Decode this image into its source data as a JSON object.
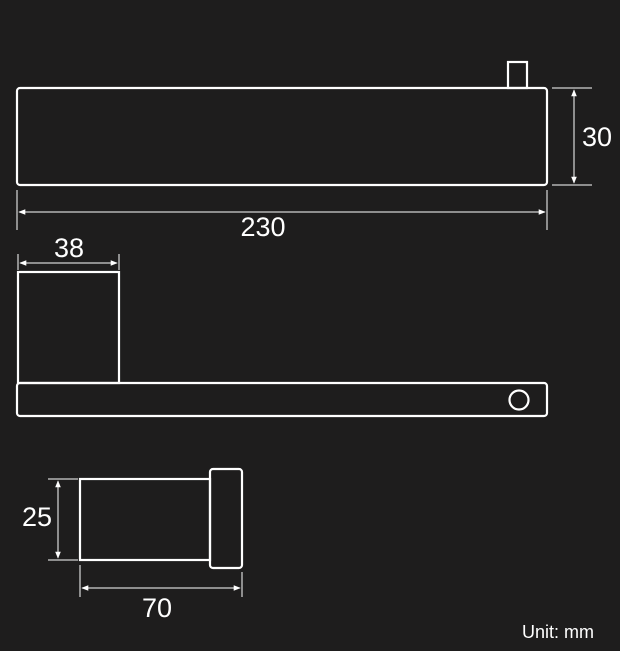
{
  "dimensions": {
    "length": "230",
    "height": "30",
    "mount_width": "38",
    "mount_height": "25",
    "mount_depth": "70"
  },
  "unit_label": "Unit: mm",
  "colors": {
    "background": "#1e1d1d",
    "lines": "#ffffff"
  }
}
